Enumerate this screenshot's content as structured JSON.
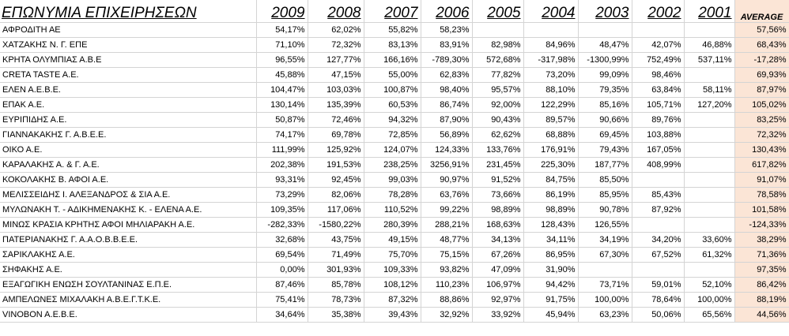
{
  "sheet": {
    "name_header": "ΕΠΩΝΥΜΙΑ ΕΠΙΧΕΙΡΗΣΕΩΝ",
    "years": [
      "2009",
      "2008",
      "2007",
      "2006",
      "2005",
      "2004",
      "2003",
      "2002",
      "2001"
    ],
    "average_header": "AVERAGE",
    "rows": [
      {
        "name": "ΑΦΡΟΔΙΤΗ ΑΕ",
        "values": [
          "54,17%",
          "62,02%",
          "55,82%",
          "58,23%",
          "",
          "",
          "",
          "",
          ""
        ],
        "average": "57,56%"
      },
      {
        "name": "ΧΑΤΖΑΚΗΣ Ν. Γ. ΕΠΕ",
        "values": [
          "71,10%",
          "72,32%",
          "83,13%",
          "83,91%",
          "82,98%",
          "84,96%",
          "48,47%",
          "42,07%",
          "46,88%"
        ],
        "average": "68,43%"
      },
      {
        "name": "ΚΡΗΤΑ ΟΛΥΜΠΙΑΣ Α.Β.Ε",
        "values": [
          "96,55%",
          "127,77%",
          "166,16%",
          "-789,30%",
          "572,68%",
          "-317,98%",
          "-1300,99%",
          "752,49%",
          "537,11%"
        ],
        "average": "-17,28%"
      },
      {
        "name": "CRETA TASTE A.E.",
        "values": [
          "45,88%",
          "47,15%",
          "55,00%",
          "62,83%",
          "77,82%",
          "73,20%",
          "99,09%",
          "98,46%",
          ""
        ],
        "average": "69,93%"
      },
      {
        "name": "ΕΛΕΝ Α.Ε.Β.Ε.",
        "values": [
          "104,47%",
          "103,03%",
          "100,87%",
          "98,40%",
          "95,57%",
          "88,10%",
          "79,35%",
          "63,84%",
          "58,11%"
        ],
        "average": "87,97%"
      },
      {
        "name": "ΕΠΑΚ Α.Ε.",
        "values": [
          "130,14%",
          "135,39%",
          "60,53%",
          "86,74%",
          "92,00%",
          "122,29%",
          "85,16%",
          "105,71%",
          "127,20%"
        ],
        "average": "105,02%"
      },
      {
        "name": "ΕΥΡΙΠΙΔΗΣ Α.Ε.",
        "values": [
          "50,87%",
          "72,46%",
          "94,32%",
          "87,90%",
          "90,43%",
          "89,57%",
          "90,66%",
          "89,76%",
          ""
        ],
        "average": "83,25%"
      },
      {
        "name": "ΓΙΑΝΝΑΚΑΚΗΣ Γ. Α.Β.Ε.Ε.",
        "values": [
          "74,17%",
          "69,78%",
          "72,85%",
          "56,89%",
          "62,62%",
          "68,88%",
          "69,45%",
          "103,88%",
          ""
        ],
        "average": "72,32%"
      },
      {
        "name": "ΟΙΚΟ Α.Ε.",
        "values": [
          "111,99%",
          "125,92%",
          "124,07%",
          "124,33%",
          "133,76%",
          "176,91%",
          "79,43%",
          "167,05%",
          ""
        ],
        "average": "130,43%"
      },
      {
        "name": "ΚΑΡΑΛΑΚΗΣ Α. & Γ. Α.Ε.",
        "values": [
          "202,38%",
          "191,53%",
          "238,25%",
          "3256,91%",
          "231,45%",
          "225,30%",
          "187,77%",
          "408,99%",
          ""
        ],
        "average": "617,82%"
      },
      {
        "name": "ΚΟΚΟΛΑΚΗΣ Β. ΑΦΟΙ Α.Ε.",
        "values": [
          "93,31%",
          "92,45%",
          "99,03%",
          "90,97%",
          "91,52%",
          "84,75%",
          "85,50%",
          "",
          ""
        ],
        "average": "91,07%"
      },
      {
        "name": "ΜΕΛΙΣΣΕΙΔΗΣ Ι. ΑΛΕΞΑΝΔΡΟΣ & ΣΙΑ Α.Ε.",
        "values": [
          "73,29%",
          "82,06%",
          "78,28%",
          "63,76%",
          "73,66%",
          "86,19%",
          "85,95%",
          "85,43%",
          ""
        ],
        "average": "78,58%"
      },
      {
        "name": "ΜΥΛΩΝΑΚΗ Τ. - ΑΔΙΚΗΜΕΝΑΚΗΣ Κ. - ΕΛΕΝΑ Α.Ε.",
        "values": [
          "109,35%",
          "117,06%",
          "110,52%",
          "99,22%",
          "98,89%",
          "98,89%",
          "90,78%",
          "87,92%",
          ""
        ],
        "average": "101,58%"
      },
      {
        "name": "ΜΙΝΩΣ ΚΡΑΣΙΑ ΚΡΗΤΗΣ ΑΦΟΙ ΜΗΛΙΑΡΑΚΗ Α.Ε.",
        "values": [
          "-282,33%",
          "-1580,22%",
          "280,39%",
          "288,21%",
          "168,63%",
          "128,43%",
          "126,55%",
          "",
          ""
        ],
        "average": "-124,33%"
      },
      {
        "name": "ΠΑΤΕΡΙΑΝΑΚΗΣ Γ. Α.Α.Ο.Β.Β.Ε.Ε.",
        "values": [
          "32,68%",
          "43,75%",
          "49,15%",
          "48,77%",
          "34,13%",
          "34,11%",
          "34,19%",
          "34,20%",
          "33,60%"
        ],
        "average": "38,29%"
      },
      {
        "name": "ΣΑΡΙΚΛΑΚΗΣ Α.Ε.",
        "values": [
          "69,54%",
          "71,49%",
          "75,70%",
          "75,15%",
          "67,26%",
          "86,95%",
          "67,30%",
          "67,52%",
          "61,32%"
        ],
        "average": "71,36%"
      },
      {
        "name": "ΣΗΦΑΚΗΣ Α.Ε.",
        "values": [
          "0,00%",
          "301,93%",
          "109,33%",
          "93,82%",
          "47,09%",
          "31,90%",
          "",
          "",
          ""
        ],
        "average": "97,35%"
      },
      {
        "name": "ΕΞΑΓΩΓΙΚΗ ΕΝΩΣΗ ΣΟΥΛΤΑΝΙΝΑΣ Ε.Π.Ε.",
        "values": [
          "87,46%",
          "85,78%",
          "108,12%",
          "110,23%",
          "106,97%",
          "94,42%",
          "73,71%",
          "59,01%",
          "52,10%"
        ],
        "average": "86,42%"
      },
      {
        "name": "ΑΜΠΕΛΩΝΕΣ ΜΙΧΑΛΑΚΗ Α.Β.Ε.Γ.Τ.Κ.Ε.",
        "values": [
          "75,41%",
          "78,73%",
          "87,32%",
          "88,86%",
          "92,97%",
          "91,75%",
          "100,00%",
          "78,64%",
          "100,00%"
        ],
        "average": "88,19%"
      },
      {
        "name": "VINOBON A.E.B.E.",
        "values": [
          "34,64%",
          "35,38%",
          "39,43%",
          "32,92%",
          "33,92%",
          "45,94%",
          "63,23%",
          "50,06%",
          "65,56%"
        ],
        "average": "44,56%"
      }
    ]
  }
}
